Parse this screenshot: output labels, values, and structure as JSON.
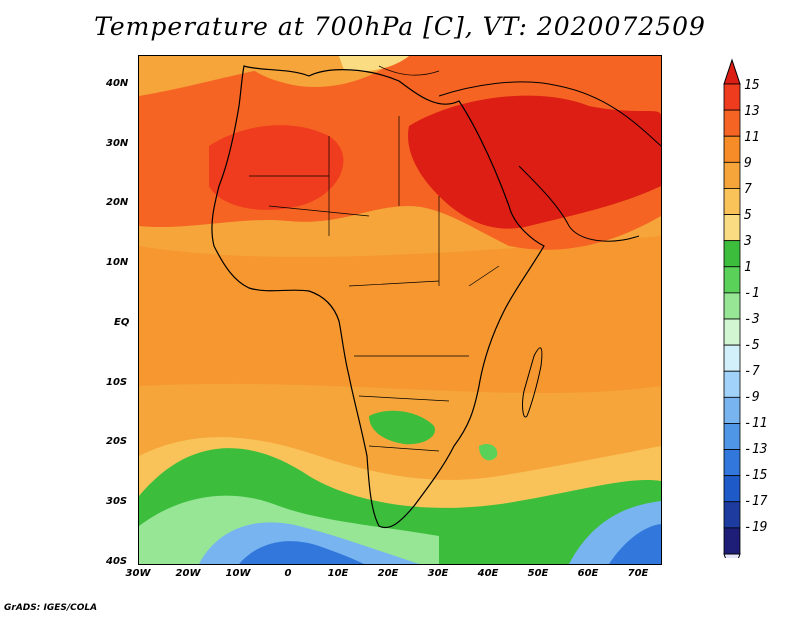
{
  "title": "Temperature at 700hPa [C], VT: 2020072509",
  "footer": "GrADS: IGES/COLA",
  "map": {
    "region": "Africa and Arabian Peninsula",
    "lat_ticks": [
      "40N",
      "30N",
      "20N",
      "10N",
      "EQ",
      "10S",
      "20S",
      "30S",
      "40S"
    ],
    "lon_ticks": [
      "30W",
      "20W",
      "10W",
      "0",
      "10E",
      "20E",
      "30E",
      "40E",
      "50E",
      "60E",
      "70E"
    ]
  },
  "colorbar": {
    "labels": [
      "15",
      "13",
      "11",
      "9",
      "7",
      "5",
      "3",
      "1",
      "-1",
      "-3",
      "-5",
      "-7",
      "-9",
      "-11",
      "-13",
      "-15",
      "-17",
      "-19"
    ],
    "colors": [
      "#dc1e14",
      "#f03c1e",
      "#f56423",
      "#f58c28",
      "#f5a53a",
      "#fac35a",
      "#fadc82",
      "#3cbe3c",
      "#5ad25a",
      "#96e696",
      "#d2f5d2",
      "#d2f0fa",
      "#a0d2fa",
      "#78b4f0",
      "#5096e6",
      "#3278dc",
      "#1e5ac8",
      "#1e3ca0",
      "#1e1e78",
      "#e6e6ff"
    ]
  }
}
